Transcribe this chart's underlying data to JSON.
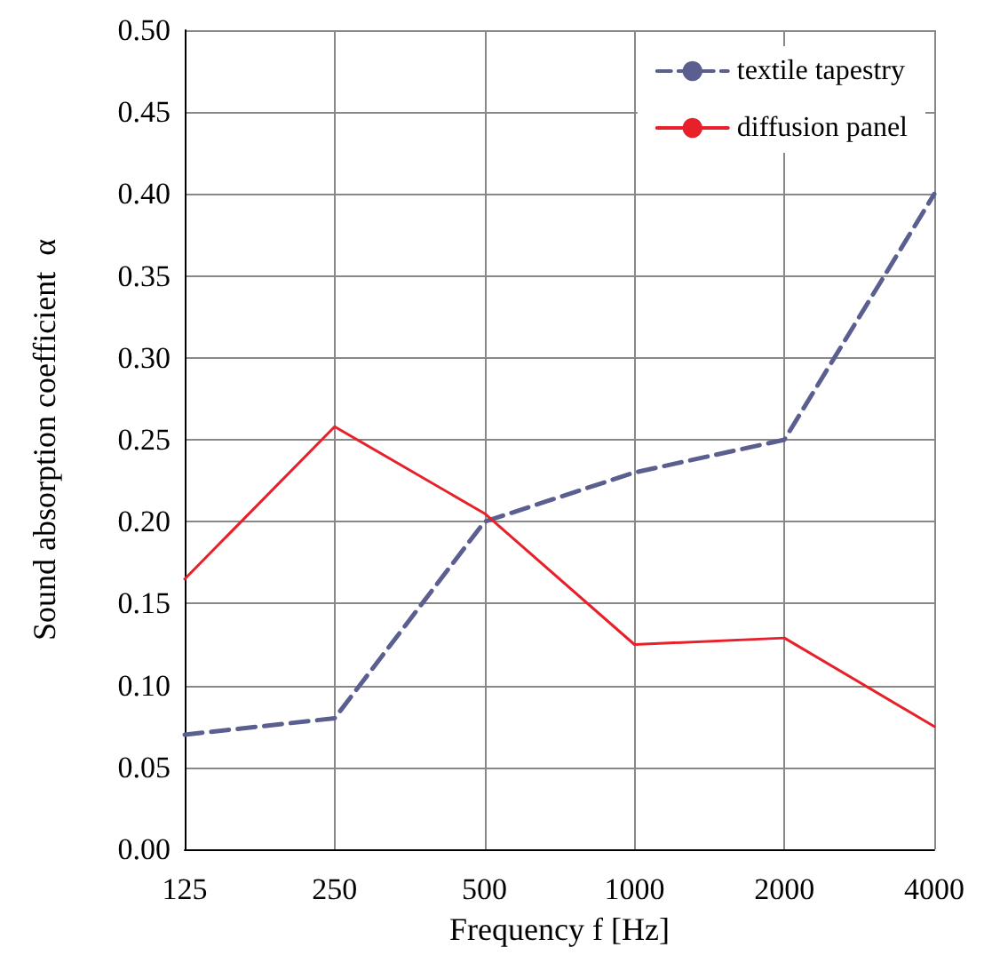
{
  "chart_data": {
    "type": "line",
    "xlabel": "Frequency f [Hz]",
    "ylabel": "Sound absorption coefficient  α",
    "categories": [
      "125",
      "250",
      "500",
      "1000",
      "2000",
      "4000"
    ],
    "series": [
      {
        "name": "textile tapestry",
        "color": "#5a5f8f",
        "line_style": "dashed",
        "values": [
          0.07,
          0.08,
          0.2,
          0.23,
          0.25,
          0.4
        ]
      },
      {
        "name": "diffusion panel",
        "color": "#e8202a",
        "line_style": "solid",
        "values": [
          0.165,
          0.258,
          0.205,
          0.125,
          0.129,
          0.075
        ]
      }
    ],
    "ylim": [
      0,
      0.5
    ],
    "yticks": [
      {
        "value": 0,
        "label": "0.00"
      },
      {
        "value": 0.05,
        "label": "0.05"
      },
      {
        "value": 0.1,
        "label": "0.10"
      },
      {
        "value": 0.15,
        "label": "0.15"
      },
      {
        "value": 0.2,
        "label": "0.20"
      },
      {
        "value": 0.25,
        "label": "0.25"
      },
      {
        "value": 0.3,
        "label": "0.30"
      },
      {
        "value": 0.35,
        "label": "0.35"
      },
      {
        "value": 0.4,
        "label": "0.40"
      },
      {
        "value": 0.45,
        "label": "0.45"
      },
      {
        "value": 0.5,
        "label": "0.50"
      }
    ],
    "grid": true,
    "legend": "top right",
    "marker": "none"
  }
}
